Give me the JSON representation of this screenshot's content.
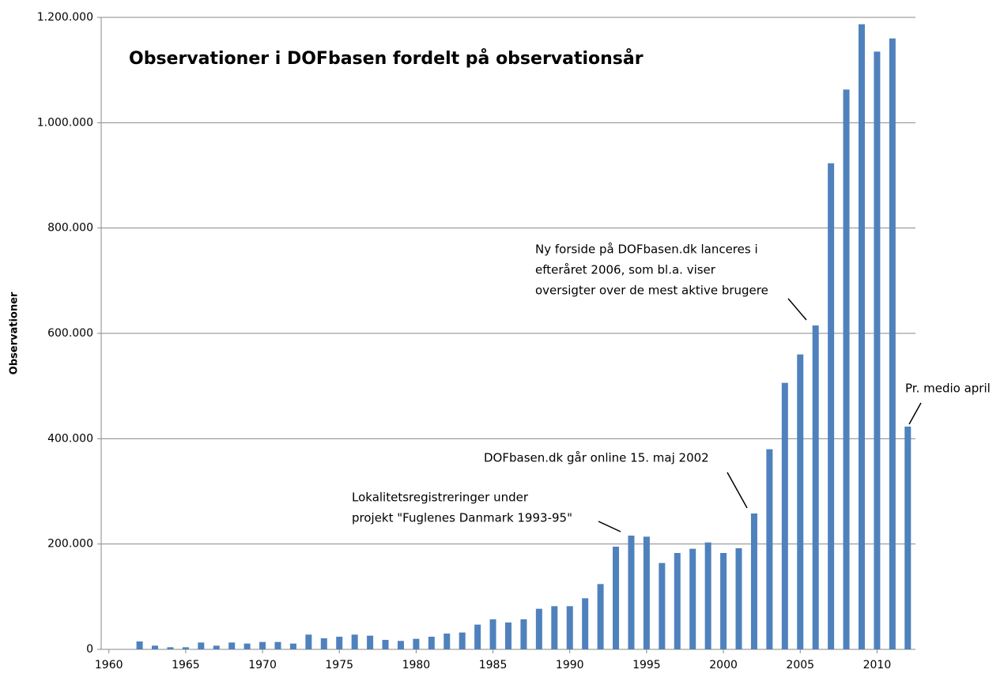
{
  "chart_data": {
    "type": "bar",
    "title": "Observationer i DOFbasen fordelt på observationsår",
    "y_label": "Observationer",
    "color": "#4f81bd",
    "grid": true,
    "x": [
      1962,
      1963,
      1964,
      1965,
      1966,
      1967,
      1968,
      1969,
      1970,
      1971,
      1972,
      1973,
      1974,
      1975,
      1976,
      1977,
      1978,
      1979,
      1980,
      1981,
      1982,
      1983,
      1984,
      1985,
      1986,
      1987,
      1988,
      1989,
      1990,
      1991,
      1992,
      1993,
      1994,
      1995,
      1996,
      1997,
      1998,
      1999,
      2000,
      2001,
      2002,
      2003,
      2004,
      2005,
      2006,
      2007,
      2008,
      2009,
      2010,
      2011,
      2012
    ],
    "values": [
      15000,
      7000,
      4000,
      4000,
      13000,
      7000,
      13000,
      11000,
      14000,
      14000,
      11000,
      28000,
      21000,
      24000,
      28000,
      26000,
      18000,
      16000,
      20000,
      24000,
      30000,
      32000,
      47000,
      57000,
      51000,
      57000,
      77000,
      82000,
      82000,
      97000,
      124000,
      195000,
      216000,
      214000,
      164000,
      183000,
      191000,
      203000,
      183000,
      192000,
      258000,
      380000,
      506000,
      560000,
      615000,
      923000,
      1063000,
      1187000,
      1135000,
      1160000,
      423000
    ],
    "xlim": [
      1959.5,
      2012.5
    ],
    "xticks": [
      1960,
      1965,
      1970,
      1975,
      1980,
      1985,
      1990,
      1995,
      2000,
      2005,
      2010
    ],
    "ylim": [
      0,
      1200000
    ],
    "yticks": [
      0,
      {
        "value": 200000,
        "label": "200.000"
      },
      {
        "value": 400000,
        "label": "400.000"
      },
      {
        "value": 600000,
        "label": "600.000"
      },
      {
        "value": 800000,
        "label": "800.000"
      },
      {
        "value": 1000000,
        "label": "1.000.000"
      },
      {
        "value": 1200000,
        "label": "1.200.000"
      }
    ],
    "annotations": [
      {
        "lines": [
          "Lokalitetsregistreringer under",
          "projekt \"Fuglenes Danmark 1993-95\""
        ]
      },
      {
        "lines": [
          "DOFbasen.dk går online 15. maj 2002"
        ]
      },
      {
        "lines": [
          "Ny forside på DOFbasen.dk lanceres i",
          "efteråret 2006, som bl.a. viser",
          "oversigter over de mest aktive brugere"
        ]
      },
      {
        "lines": [
          "Pr. medio april"
        ]
      }
    ]
  }
}
